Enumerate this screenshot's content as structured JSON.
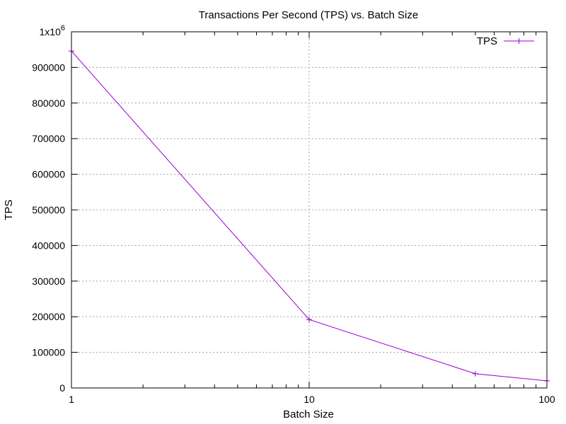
{
  "chart_data": {
    "type": "line",
    "title": "Transactions Per Second (TPS) vs. Batch Size",
    "xlabel": "Batch Size",
    "ylabel": "TPS",
    "x_scale": "log",
    "xlim": [
      1,
      100
    ],
    "ylim": [
      0,
      1000000
    ],
    "grid": true,
    "legend_position": "top-right",
    "x_ticks": [
      {
        "value": 1,
        "label": "1"
      },
      {
        "value": 10,
        "label": "10"
      },
      {
        "value": 100,
        "label": "100"
      }
    ],
    "y_ticks": [
      {
        "value": 0,
        "label": "0"
      },
      {
        "value": 100000,
        "label": "100000"
      },
      {
        "value": 200000,
        "label": "200000"
      },
      {
        "value": 300000,
        "label": "300000"
      },
      {
        "value": 400000,
        "label": "400000"
      },
      {
        "value": 500000,
        "label": "500000"
      },
      {
        "value": 600000,
        "label": "600000"
      },
      {
        "value": 700000,
        "label": "700000"
      },
      {
        "value": 800000,
        "label": "800000"
      },
      {
        "value": 900000,
        "label": "900000"
      },
      {
        "value": 1000000,
        "label": "1x10",
        "superscript": "6"
      }
    ],
    "series": [
      {
        "name": "TPS",
        "color": "#9400d3",
        "x": [
          1,
          10,
          50,
          100
        ],
        "y": [
          946000,
          192000,
          40000,
          20000
        ]
      }
    ]
  }
}
